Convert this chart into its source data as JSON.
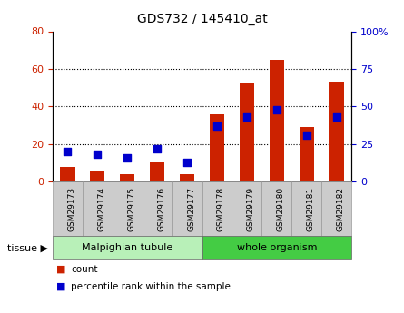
{
  "title": "GDS732 / 145410_at",
  "samples": [
    "GSM29173",
    "GSM29174",
    "GSM29175",
    "GSM29176",
    "GSM29177",
    "GSM29178",
    "GSM29179",
    "GSM29180",
    "GSM29181",
    "GSM29182"
  ],
  "counts": [
    8,
    6,
    4,
    10,
    4,
    36,
    52,
    65,
    29,
    53
  ],
  "percentiles": [
    20,
    18,
    16,
    22,
    13,
    37,
    43,
    48,
    31,
    43
  ],
  "tissue_groups": [
    {
      "label": "Malpighian tubule",
      "start": 0,
      "end": 5,
      "color": "#b8f0b8"
    },
    {
      "label": "whole organism",
      "start": 5,
      "end": 10,
      "color": "#44cc44"
    }
  ],
  "bar_color": "#cc2200",
  "dot_color": "#0000cc",
  "left_ylim": [
    0,
    80
  ],
  "right_ylim": [
    0,
    100
  ],
  "left_yticks": [
    0,
    20,
    40,
    60,
    80
  ],
  "right_yticks": [
    0,
    25,
    50,
    75,
    100
  ],
  "right_yticklabels": [
    "0",
    "25",
    "50",
    "75",
    "100%"
  ],
  "grid_values": [
    20,
    40,
    60
  ],
  "legend_count_label": "count",
  "legend_percentile_label": "percentile rank within the sample",
  "bar_width": 0.5,
  "dot_size": 40,
  "bg_color": "#ffffff",
  "label_bg": "#cccccc",
  "label_edge": "#999999"
}
